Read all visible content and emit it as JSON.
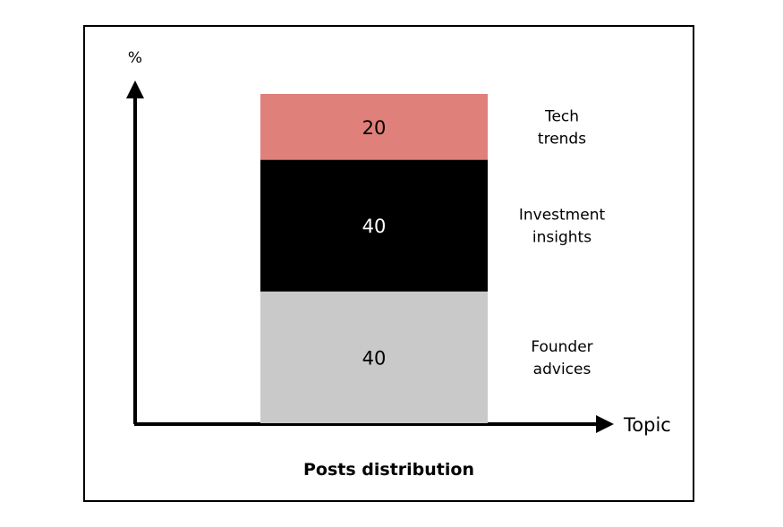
{
  "chart_data": {
    "type": "bar",
    "stacked": true,
    "title": "Posts distribution",
    "xlabel": "Topic",
    "ylabel": "%",
    "ylim": [
      0,
      100
    ],
    "grid": false,
    "series": [
      {
        "name": "Founder advices",
        "label_lines": [
          "Founder",
          "advices"
        ],
        "value": 40,
        "color": "#c9c9c9",
        "text_color": "#000000"
      },
      {
        "name": "Investment insights",
        "label_lines": [
          "Investment",
          "insights"
        ],
        "value": 40,
        "color": "#000000",
        "text_color": "#ffffff"
      },
      {
        "name": "Tech trends",
        "label_lines": [
          "Tech",
          "trends"
        ],
        "value": 20,
        "color": "#e0807a",
        "text_color": "#000000"
      }
    ]
  }
}
